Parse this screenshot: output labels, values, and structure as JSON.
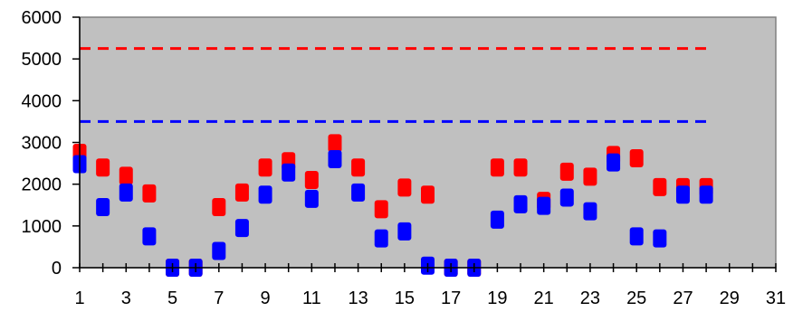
{
  "chart_data": {
    "type": "scatter",
    "title": "",
    "xlabel": "",
    "ylabel": "",
    "xlim": [
      1,
      31
    ],
    "ylim": [
      0,
      6000
    ],
    "x_ticks": [
      "1",
      "3",
      "5",
      "7",
      "9",
      "11",
      "13",
      "15",
      "17",
      "19",
      "21",
      "23",
      "25",
      "27",
      "29",
      "31"
    ],
    "y_ticks": [
      "0",
      "1000",
      "2000",
      "3000",
      "4000",
      "5000",
      "6000"
    ],
    "plot_background": "#c0c0c0",
    "grid": false,
    "legend": "none",
    "series": [
      {
        "color": "#ff0000",
        "x": [
          1,
          2,
          3,
          4,
          5,
          6,
          7,
          8,
          9,
          10,
          11,
          12,
          13,
          14,
          15,
          16,
          17,
          18,
          19,
          20,
          21,
          22,
          23,
          24,
          25,
          26,
          27,
          28
        ],
        "values": [
          2750,
          2400,
          2200,
          1780,
          0,
          0,
          1450,
          1800,
          2400,
          2550,
          2100,
          2980,
          2400,
          1400,
          1920,
          1750,
          0,
          0,
          2400,
          2400,
          1600,
          2300,
          2180,
          2700,
          2620,
          1930,
          1930,
          1930
        ]
      },
      {
        "color": "#0000ff",
        "x": [
          1,
          2,
          3,
          4,
          5,
          6,
          7,
          8,
          9,
          10,
          11,
          12,
          13,
          14,
          15,
          16,
          17,
          18,
          19,
          20,
          21,
          22,
          23,
          24,
          25,
          26,
          27,
          28
        ],
        "values": [
          2480,
          1450,
          1800,
          750,
          0,
          0,
          400,
          950,
          1750,
          2280,
          1650,
          2600,
          1800,
          700,
          870,
          50,
          0,
          0,
          1150,
          1520,
          1480,
          1680,
          1350,
          2520,
          750,
          700,
          1750,
          1750
        ]
      }
    ],
    "reference_lines": [
      {
        "color": "#ff0000",
        "value": 5250,
        "x_range": [
          1,
          28
        ],
        "style": "dashed"
      },
      {
        "color": "#0000ff",
        "value": 3500,
        "x_range": [
          1,
          28
        ],
        "style": "dashed"
      }
    ]
  }
}
